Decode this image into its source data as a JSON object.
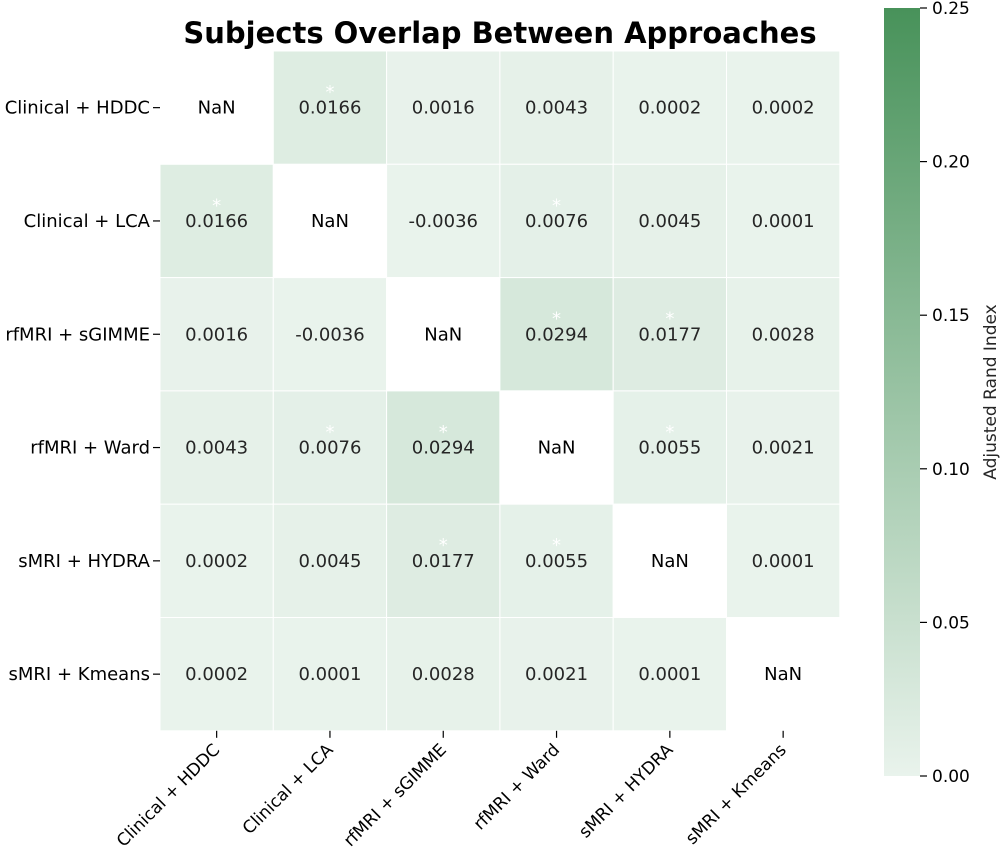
{
  "chart_data": {
    "type": "heatmap",
    "title": "Subjects Overlap Between Approaches",
    "row_labels": [
      "Clinical + HDDC",
      "Clinical + LCA",
      "rfMRI + sGIMME",
      "rfMRI + Ward",
      "sMRI + HYDRA",
      "sMRI + Kmeans"
    ],
    "col_labels": [
      "Clinical + HDDC",
      "Clinical + LCA",
      "rfMRI + sGIMME",
      "rfMRI + Ward",
      "sMRI + HYDRA",
      "sMRI + Kmeans"
    ],
    "values": [
      [
        null,
        0.0166,
        0.0016,
        0.0043,
        0.0002,
        0.0002
      ],
      [
        0.0166,
        null,
        -0.0036,
        0.0076,
        0.0045,
        0.0001
      ],
      [
        0.0016,
        -0.0036,
        null,
        0.0294,
        0.0177,
        0.0028
      ],
      [
        0.0043,
        0.0076,
        0.0294,
        null,
        0.0055,
        0.0021
      ],
      [
        0.0002,
        0.0045,
        0.0177,
        0.0055,
        null,
        0.0001
      ],
      [
        0.0002,
        0.0001,
        0.0028,
        0.0021,
        0.0001,
        null
      ]
    ],
    "cell_text": [
      [
        "NaN",
        "0.0166",
        "0.0016",
        "0.0043",
        "0.0002",
        "0.0002"
      ],
      [
        "0.0166",
        "NaN",
        "-0.0036",
        "0.0076",
        "0.0045",
        "0.0001"
      ],
      [
        "0.0016",
        "-0.0036",
        "NaN",
        "0.0294",
        "0.0177",
        "0.0028"
      ],
      [
        "0.0043",
        "0.0076",
        "0.0294",
        "NaN",
        "0.0055",
        "0.0021"
      ],
      [
        "0.0002",
        "0.0045",
        "0.0177",
        "0.0055",
        "NaN",
        "0.0001"
      ],
      [
        "0.0002",
        "0.0001",
        "0.0028",
        "0.0021",
        "0.0001",
        "NaN"
      ]
    ],
    "significant": [
      [
        false,
        true,
        false,
        false,
        false,
        false
      ],
      [
        true,
        false,
        false,
        true,
        false,
        false
      ],
      [
        false,
        false,
        false,
        true,
        true,
        false
      ],
      [
        false,
        true,
        true,
        false,
        true,
        false
      ],
      [
        false,
        false,
        true,
        true,
        false,
        false
      ],
      [
        false,
        false,
        false,
        false,
        false,
        false
      ]
    ],
    "significance_marker": "*",
    "nan_label": "NaN",
    "colorbar": {
      "label": "Adjusted Rand Index",
      "range": [
        0.0,
        0.25
      ],
      "ticks": [
        0.0,
        0.05,
        0.1,
        0.15,
        0.2,
        0.25
      ],
      "tick_labels": [
        "0.00",
        "0.05",
        "0.10",
        "0.15",
        "0.20",
        "0.25"
      ],
      "color_low": "#e9f3ec",
      "color_high": "#48925a"
    },
    "colors": {
      "text": "#262626",
      "nan_cell": "#ffffff",
      "grid_line": "#ffffff",
      "marker": "#ffffff"
    }
  }
}
